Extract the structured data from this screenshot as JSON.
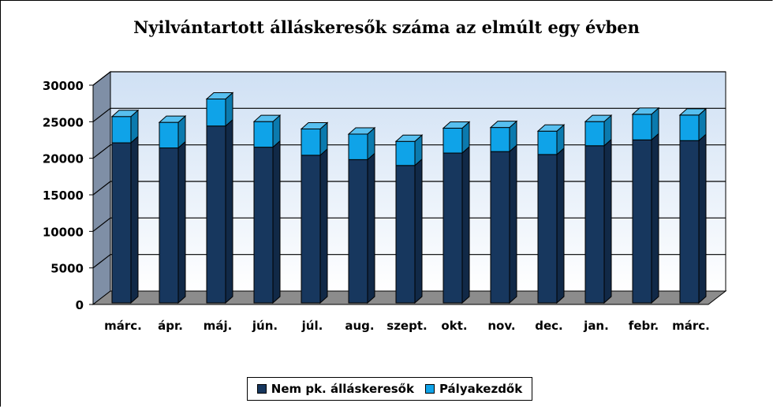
{
  "chart_data": {
    "type": "bar",
    "stacked": true,
    "title": "Nyilvántartott álláskeresők száma az elmúlt egy évben",
    "categories": [
      "márc.",
      "ápr.",
      "máj.",
      "jún.",
      "júl.",
      "aug.",
      "szept.",
      "okt.",
      "nov.",
      "dec.",
      "jan.",
      "febr.",
      "márc."
    ],
    "series": [
      {
        "name": "Nem pk. álláskeresők",
        "color": "#17375e",
        "values": [
          21900,
          21200,
          24200,
          21300,
          20200,
          19600,
          18800,
          20500,
          20700,
          20300,
          21500,
          22300,
          22200
        ]
      },
      {
        "name": "Pályakezdők",
        "color": "#0fa3e8",
        "values": [
          3600,
          3500,
          3700,
          3500,
          3600,
          3500,
          3300,
          3400,
          3300,
          3200,
          3300,
          3500,
          3500
        ]
      }
    ],
    "ylim": [
      0,
      30000
    ],
    "yticks": [
      "0",
      "5000",
      "10000",
      "15000",
      "20000",
      "25000",
      "30000"
    ],
    "grid": true,
    "legend_position": "bottom"
  }
}
